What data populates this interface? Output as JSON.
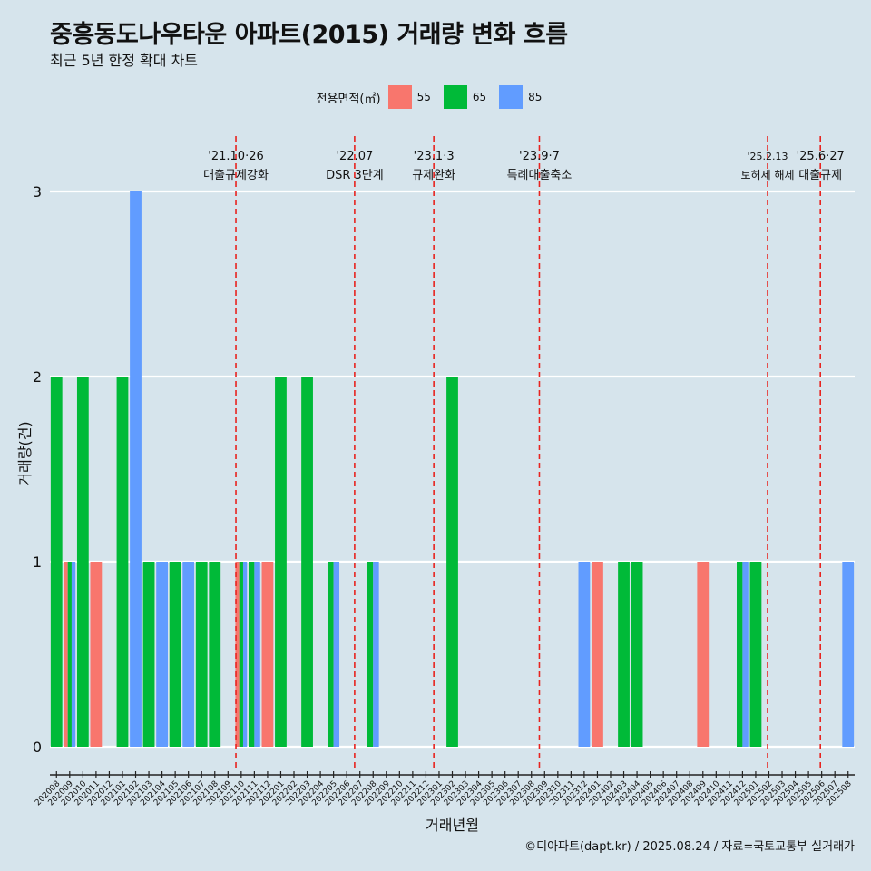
{
  "title": "중흥동도나우타운 아파트(2015) 거래량 변화 흐름",
  "subtitle": "최근 5년 한정 확대 차트",
  "caption": "©디아파트(dapt.kr) / 2025.08.24 / 자료=국토교통부 실거래가",
  "legend": {
    "title": "전용면적(㎡)",
    "items": [
      {
        "label": "55",
        "color": "#f8766d"
      },
      {
        "label": "65",
        "color": "#00ba38"
      },
      {
        "label": "85",
        "color": "#619cff"
      }
    ]
  },
  "chart_data": {
    "type": "bar",
    "xlabel": "거래년월",
    "ylabel": "거래량(건)",
    "ylim": [
      0,
      3
    ],
    "yticks": [
      0,
      1,
      2,
      3
    ],
    "categories": [
      "202008",
      "202009",
      "202010",
      "202011",
      "202012",
      "202101",
      "202102",
      "202103",
      "202104",
      "202105",
      "202106",
      "202107",
      "202108",
      "202109",
      "202110",
      "202111",
      "202112",
      "202201",
      "202202",
      "202203",
      "202204",
      "202205",
      "202206",
      "202207",
      "202208",
      "202209",
      "202210",
      "202211",
      "202212",
      "202301",
      "202302",
      "202303",
      "202304",
      "202305",
      "202306",
      "202307",
      "202308",
      "202309",
      "202310",
      "202311",
      "202312",
      "202401",
      "202402",
      "202403",
      "202404",
      "202405",
      "202406",
      "202407",
      "202408",
      "202409",
      "202410",
      "202411",
      "202412",
      "202501",
      "202502",
      "202503",
      "202504",
      "202505",
      "202506",
      "202507",
      "202508"
    ],
    "series": [
      {
        "name": "55",
        "values": [
          0,
          1,
          0,
          1,
          0,
          0,
          0,
          0,
          0,
          0,
          0,
          0,
          0,
          0,
          1,
          0,
          1,
          0,
          0,
          0,
          0,
          0,
          0,
          0,
          0,
          0,
          0,
          0,
          0,
          0,
          0,
          0,
          0,
          0,
          0,
          0,
          0,
          0,
          0,
          0,
          0,
          1,
          0,
          0,
          0,
          0,
          0,
          0,
          0,
          1,
          0,
          0,
          0,
          0,
          0,
          0,
          0,
          0,
          0,
          0,
          0
        ]
      },
      {
        "name": "65",
        "values": [
          2,
          1,
          2,
          0,
          0,
          2,
          0,
          1,
          0,
          1,
          0,
          1,
          1,
          0,
          1,
          1,
          0,
          2,
          0,
          2,
          0,
          1,
          0,
          0,
          1,
          0,
          0,
          0,
          0,
          0,
          2,
          0,
          0,
          0,
          0,
          0,
          0,
          0,
          0,
          0,
          0,
          0,
          0,
          1,
          1,
          0,
          0,
          0,
          0,
          0,
          0,
          0,
          1,
          1,
          0,
          0,
          0,
          0,
          0,
          0,
          0
        ]
      },
      {
        "name": "85",
        "values": [
          0,
          1,
          0,
          0,
          0,
          0,
          3,
          0,
          1,
          0,
          1,
          0,
          0,
          0,
          1,
          1,
          0,
          0,
          0,
          0,
          0,
          1,
          0,
          0,
          1,
          0,
          0,
          0,
          0,
          0,
          0,
          0,
          0,
          0,
          0,
          0,
          0,
          0,
          0,
          0,
          1,
          0,
          0,
          0,
          0,
          0,
          0,
          0,
          0,
          0,
          0,
          0,
          1,
          0,
          0,
          0,
          0,
          0,
          0,
          0,
          1
        ]
      }
    ],
    "events": [
      {
        "date": "'21.10·26",
        "label": "대출규제강화",
        "x": 14.1
      },
      {
        "date": "'22.07",
        "label": "DSR 3단계",
        "x": 23.1
      },
      {
        "date": "'23.1·3",
        "label": "규제완화",
        "x": 29.1
      },
      {
        "date": "'23.9·7",
        "label": "특례대출축소",
        "x": 37.1
      },
      {
        "date": "'25.2.13",
        "label": "토허제 해제",
        "x": 54.4
      },
      {
        "date": "'25.6·27",
        "label": "대출규제",
        "x": 58.4
      }
    ]
  }
}
